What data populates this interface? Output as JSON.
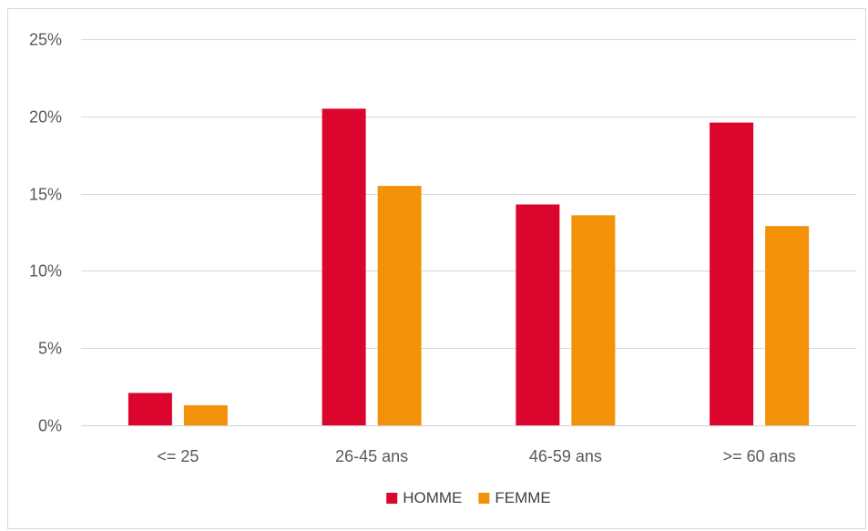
{
  "chart_data": {
    "type": "bar",
    "title": "",
    "xlabel": "",
    "ylabel": "",
    "categories": [
      "<= 25",
      "26-45 ans",
      "46-59 ans",
      ">= 60 ans"
    ],
    "series": [
      {
        "name": "HOMME",
        "color": "#dc052d",
        "values": [
          2.1,
          20.5,
          14.3,
          19.6
        ]
      },
      {
        "name": "FEMME",
        "color": "#f39208",
        "values": [
          1.3,
          15.5,
          13.6,
          12.9
        ]
      }
    ],
    "ylim": [
      0,
      25
    ],
    "yticks": [
      0,
      5,
      10,
      15,
      20,
      25
    ],
    "ytick_labels": [
      "0%",
      "5%",
      "10%",
      "15%",
      "20%",
      "25%"
    ],
    "grid": true,
    "legend_position": "bottom"
  }
}
